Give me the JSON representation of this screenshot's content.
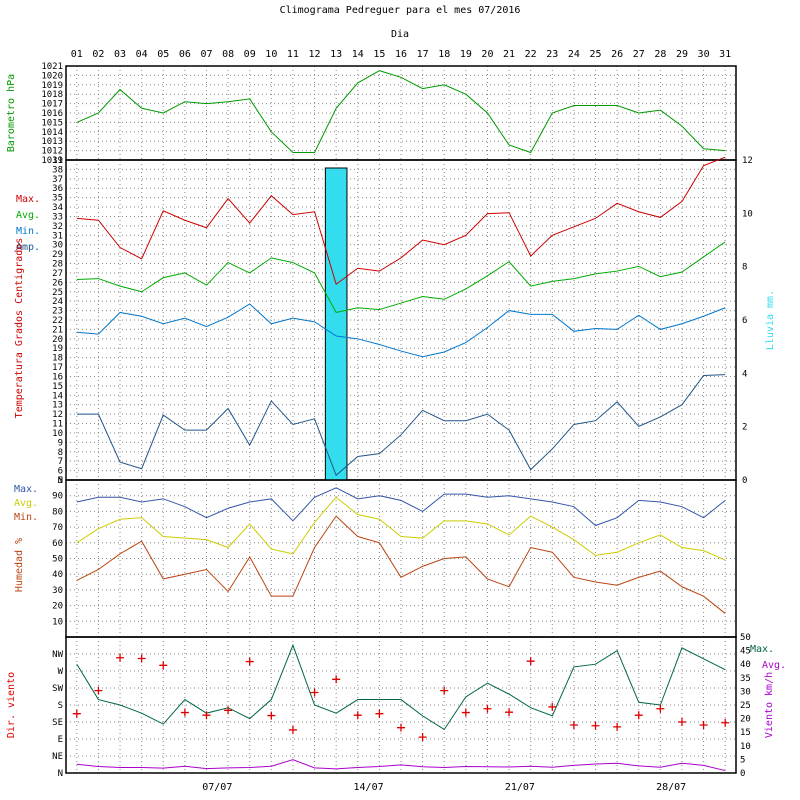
{
  "page": {
    "title": "Climograma Pedreguer para el mes 07/2016",
    "day_axis_label": "Dia"
  },
  "colors": {
    "pressure": "#009900",
    "tmax": "#cc0000",
    "tavg": "#00aa00",
    "tmin": "#0077cc",
    "tamp": "#225588",
    "rain_fill": "#33ddee",
    "hmax": "#3355aa",
    "havg": "#cccc00",
    "hmin": "#bb4411",
    "wind_max": "#006644",
    "wind_avg": "#aa00cc",
    "wind_dir": "#dd0000"
  },
  "days": [
    "01",
    "02",
    "03",
    "04",
    "05",
    "06",
    "07",
    "08",
    "09",
    "10",
    "11",
    "12",
    "13",
    "14",
    "15",
    "16",
    "17",
    "18",
    "19",
    "20",
    "21",
    "22",
    "23",
    "24",
    "25",
    "26",
    "27",
    "28",
    "29",
    "30",
    "31"
  ],
  "week_labels": [
    {
      "day": 7,
      "label": "07/07"
    },
    {
      "day": 14,
      "label": "14/07"
    },
    {
      "day": 21,
      "label": "21/07"
    },
    {
      "day": 28,
      "label": "28/07"
    }
  ],
  "chart_data": [
    {
      "type": "line",
      "name": "barometer",
      "ylabel": "Barometro hPa",
      "ylim": [
        1011,
        1021
      ],
      "yticks": [
        1011,
        1012,
        1013,
        1014,
        1015,
        1016,
        1017,
        1018,
        1019,
        1020,
        1021
      ],
      "series": [
        {
          "name": "Barometro",
          "values": [
            1015,
            1016,
            1018.5,
            1016.5,
            1016,
            1017.2,
            1017,
            1017.2,
            1017.5,
            1014,
            1011.8,
            1011.8,
            1016.5,
            1019.2,
            1020.5,
            1019.8,
            1018.6,
            1019,
            1018,
            1016,
            1012.6,
            1011.8,
            1016,
            1016.8,
            1016.8,
            1016.8,
            1016,
            1016.3,
            1014.6,
            1012.2,
            1012
          ]
        }
      ]
    },
    {
      "type": "line",
      "name": "temperature",
      "ylabel": "Temperatura Grados Centigrados",
      "y2label": "Lluvia mm.",
      "ylim": [
        5,
        39
      ],
      "y2lim": [
        0,
        12
      ],
      "yticks": [
        5,
        6,
        7,
        8,
        9,
        10,
        11,
        12,
        13,
        14,
        15,
        16,
        17,
        18,
        19,
        20,
        21,
        22,
        23,
        24,
        25,
        26,
        27,
        28,
        29,
        30,
        31,
        32,
        33,
        34,
        35,
        36,
        37,
        38,
        39
      ],
      "y2ticks": [
        0,
        2,
        4,
        6,
        8,
        10,
        12
      ],
      "legend": [
        "Max.",
        "Avg.",
        "Min.",
        "Amp."
      ],
      "series": [
        {
          "name": "Max.",
          "values": [
            32.8,
            32.6,
            29.7,
            28.5,
            33.6,
            32.6,
            31.8,
            34.9,
            32.3,
            35.2,
            33.2,
            33.5,
            25.8,
            27.5,
            27.2,
            28.6,
            30.5,
            30,
            31,
            33.3,
            33.4,
            28.8,
            31,
            31.9,
            32.8,
            34.4,
            33.5,
            32.9,
            34.6,
            38.4,
            39.3
          ]
        },
        {
          "name": "Avg.",
          "values": [
            26.3,
            26.4,
            25.6,
            25,
            26.5,
            27,
            25.7,
            28.1,
            27,
            28.6,
            28.1,
            27,
            22.8,
            23.3,
            23.1,
            23.8,
            24.5,
            24.2,
            25.3,
            26.7,
            28.2,
            25.6,
            26.1,
            26.4,
            26.9,
            27.2,
            27.7,
            26.6,
            27.1,
            28.7,
            30.3
          ]
        },
        {
          "name": "Min.",
          "values": [
            20.7,
            20.5,
            22.8,
            22.4,
            21.6,
            22.2,
            21.3,
            22.3,
            23.7,
            21.6,
            22.2,
            21.8,
            20.3,
            20,
            19.4,
            18.7,
            18.1,
            18.6,
            19.6,
            21.2,
            23,
            22.6,
            22.6,
            20.8,
            21.1,
            21,
            22.5,
            21,
            21.6,
            22.4,
            23.3
          ]
        },
        {
          "name": "Amp.",
          "values": [
            12,
            12,
            6.9,
            6.2,
            11.9,
            10.3,
            10.3,
            12.6,
            8.7,
            13.4,
            10.9,
            11.5,
            5.5,
            7.5,
            7.8,
            9.8,
            12.4,
            11.3,
            11.3,
            12,
            10.3,
            6.1,
            8.3,
            10.9,
            11.3,
            13.3,
            10.7,
            11.7,
            13,
            16.1,
            16.2
          ]
        }
      ],
      "rain": {
        "name": "Lluvia mm.",
        "day": 13,
        "value": 11.7
      }
    },
    {
      "type": "line",
      "name": "humidity",
      "ylabel": "Humedad %",
      "ylim": [
        0,
        100
      ],
      "yticks": [
        {
          "v": 10,
          "t": "10"
        },
        {
          "v": 20,
          "t": "20"
        },
        {
          "v": 30,
          "t": "30"
        },
        {
          "v": 40,
          "t": "40"
        },
        {
          "v": 50,
          "t": "50"
        },
        {
          "v": 60,
          "t": "60"
        },
        {
          "v": 70,
          "t": "70"
        },
        {
          "v": 80,
          "t": "80"
        },
        {
          "v": 90,
          "t": "90"
        },
        {
          "v": 100,
          "t": "N"
        }
      ],
      "legend": [
        "Max.",
        "Avg.",
        "Min."
      ],
      "series": [
        {
          "name": "Max.",
          "values": [
            86,
            89,
            89,
            86,
            88,
            83,
            76,
            82,
            86,
            88,
            74,
            89,
            95,
            88,
            90,
            87,
            80,
            91,
            91,
            89,
            90,
            88,
            86,
            83,
            71,
            76,
            87,
            86,
            83,
            76,
            87
          ]
        },
        {
          "name": "Avg.",
          "values": [
            60,
            69,
            75,
            76,
            64,
            63,
            62,
            57,
            72,
            56,
            53,
            73,
            89,
            78,
            75,
            64,
            63,
            74,
            74,
            72,
            65,
            77,
            70,
            62,
            52,
            54,
            60,
            65,
            57,
            55,
            49
          ]
        },
        {
          "name": "Min.",
          "values": [
            36,
            43,
            53,
            61,
            37,
            40,
            43,
            29,
            51,
            26,
            26,
            57,
            77,
            64,
            60,
            38,
            45,
            50,
            51,
            37,
            32,
            57,
            54,
            38,
            35,
            33,
            38,
            42,
            32,
            26,
            15
          ]
        }
      ]
    },
    {
      "type": "line",
      "name": "wind",
      "ylabel": "Dir. viento",
      "y2label": "Viento km/h",
      "ylim": [
        0,
        360
      ],
      "y2lim": [
        0,
        50
      ],
      "yticks": [
        {
          "v": 0,
          "t": "N"
        },
        {
          "v": 45,
          "t": "NE"
        },
        {
          "v": 90,
          "t": "E"
        },
        {
          "v": 135,
          "t": "SE"
        },
        {
          "v": 180,
          "t": "S"
        },
        {
          "v": 225,
          "t": "SW"
        },
        {
          "v": 270,
          "t": "W"
        },
        {
          "v": 315,
          "t": "NW"
        }
      ],
      "y2ticks": [
        0,
        5,
        10,
        15,
        20,
        25,
        30,
        35,
        40,
        45,
        50
      ],
      "legend": [
        "Max.",
        "Avg."
      ],
      "direction": {
        "name": "Dir. viento",
        "values": [
          157,
          218,
          305,
          303,
          285,
          160,
          153,
          166,
          295,
          152,
          114,
          213,
          248,
          153,
          157,
          120,
          95,
          218,
          160,
          170,
          161,
          296,
          175,
          127,
          125,
          122,
          153,
          170,
          135,
          127,
          133
        ]
      },
      "series": [
        {
          "name": "Max.",
          "values": [
            40,
            27,
            25,
            22,
            18,
            27,
            22,
            24,
            20,
            27,
            47,
            25,
            22,
            27,
            27,
            27,
            21,
            16,
            28,
            33,
            29,
            24,
            21,
            39,
            40,
            45,
            26,
            25,
            46,
            42,
            38
          ]
        },
        {
          "name": "Avg.",
          "values": [
            3.2,
            2.4,
            2,
            2,
            1.8,
            2.5,
            1.6,
            1.9,
            2,
            2.5,
            4.9,
            1.9,
            1.5,
            2,
            2.4,
            3,
            2.3,
            2,
            2.4,
            2.3,
            2.2,
            2.5,
            2.1,
            2.8,
            3.3,
            3.6,
            2.6,
            2.1,
            3.6,
            2.8,
            0.9
          ]
        }
      ]
    }
  ]
}
